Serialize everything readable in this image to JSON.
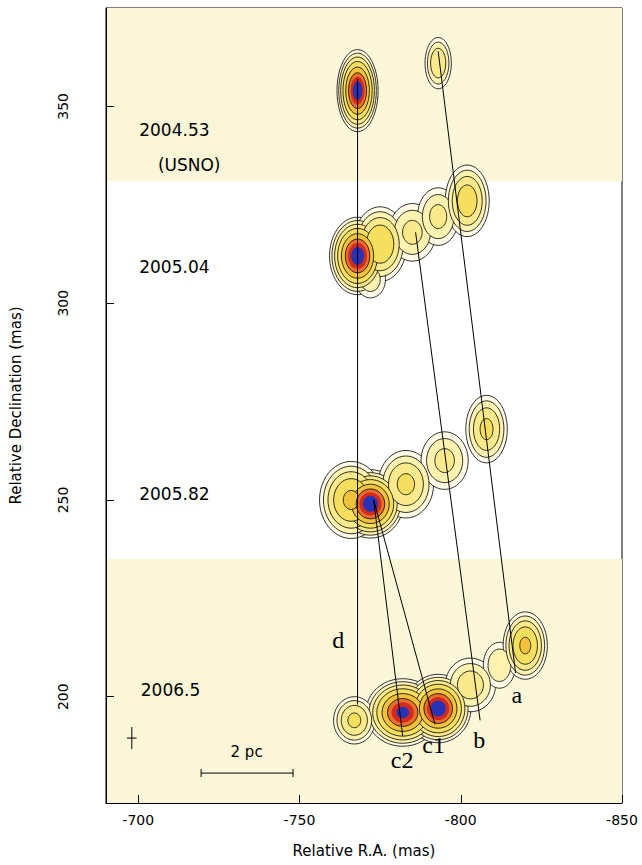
{
  "chart_data": {
    "type": "contour_map",
    "x_label": "Relative R.A. (mas)",
    "y_label": "Relative Declination (mas)",
    "xlim": [
      -690,
      -850
    ],
    "xticks": [
      -700,
      -750,
      -800,
      -850
    ],
    "ylim": [
      173,
      375
    ],
    "yticks": [
      200,
      250,
      300,
      350
    ],
    "bands": [
      {
        "ylim": [
          331,
          375
        ],
        "color": "#fbf6d8"
      },
      {
        "ylim": [
          173,
          235
        ],
        "color": "#fbf6d8"
      }
    ],
    "components": [
      {
        "x": -768,
        "y": 354,
        "sx": 2.2,
        "sy": 3.6,
        "peak": 1.0
      },
      {
        "x": -793,
        "y": 361,
        "sx": 2.0,
        "sy": 3.2,
        "peak": 0.12
      },
      {
        "x": -768,
        "y": 312,
        "sx": 3.0,
        "sy": 3.4,
        "peak": 1.0
      },
      {
        "x": -775,
        "y": 315,
        "sx": 3.5,
        "sy": 4.0,
        "peak": 0.25
      },
      {
        "x": -785,
        "y": 318,
        "sx": 4.0,
        "sy": 4.0,
        "peak": 0.08
      },
      {
        "x": -793,
        "y": 322,
        "sx": 3.5,
        "sy": 4.0,
        "peak": 0.08
      },
      {
        "x": -802,
        "y": 326,
        "sx": 3.0,
        "sy": 4.0,
        "peak": 0.2
      },
      {
        "x": -772,
        "y": 306,
        "sx": 3.0,
        "sy": 3.0,
        "peak": 0.05
      },
      {
        "x": -772,
        "y": 249,
        "sx": 3.5,
        "sy": 3.0,
        "peak": 1.0
      },
      {
        "x": -766,
        "y": 250,
        "sx": 4.0,
        "sy": 4.0,
        "peak": 0.3
      },
      {
        "x": -783,
        "y": 254,
        "sx": 4.0,
        "sy": 4.0,
        "peak": 0.15
      },
      {
        "x": -795,
        "y": 260,
        "sx": 4.0,
        "sy": 4.0,
        "peak": 0.08
      },
      {
        "x": -808,
        "y": 268,
        "sx": 3.0,
        "sy": 4.0,
        "peak": 0.15
      },
      {
        "x": -782,
        "y": 196,
        "sx": 4.0,
        "sy": 3.0,
        "peak": 0.9
      },
      {
        "x": -793,
        "y": 197,
        "sx": 3.5,
        "sy": 3.0,
        "peak": 1.0
      },
      {
        "x": -767,
        "y": 194,
        "sx": 3.0,
        "sy": 2.8,
        "peak": 0.15
      },
      {
        "x": -803,
        "y": 203,
        "sx": 4.0,
        "sy": 3.5,
        "peak": 0.1
      },
      {
        "x": -812,
        "y": 208,
        "sx": 3.0,
        "sy": 3.5,
        "peak": 0.06
      },
      {
        "x": -820,
        "y": 213,
        "sx": 2.8,
        "sy": 3.5,
        "peak": 0.3
      }
    ],
    "tracks": [
      {
        "label": "d",
        "points": [
          [
            -768,
            357
          ],
          [
            -768,
            198
          ]
        ],
        "label_x": -762,
        "label_y": 214.4
      },
      {
        "label": "c2",
        "points": [
          [
            -773,
            250
          ],
          [
            -782,
            190
          ]
        ],
        "label_x": -781.8,
        "label_y": 183.9
      },
      {
        "label": "c1",
        "points": [
          [
            -773,
            250
          ],
          [
            -792,
            193
          ]
        ],
        "label_x": -791.6,
        "label_y": 187.7
      },
      {
        "label": "b",
        "points": [
          [
            -786,
            318
          ],
          [
            -806,
            194
          ]
        ],
        "label_x": -805.7,
        "label_y": 189
      },
      {
        "label": "a",
        "points": [
          [
            -793,
            364
          ],
          [
            -817,
            206
          ]
        ],
        "label_x": -817.4,
        "label_y": 200.5
      }
    ],
    "epoch_labels": [
      {
        "text": "2004.53",
        "x": -711.2,
        "y": 344.0
      },
      {
        "text": "(USNO)",
        "x": -715.8,
        "y": 335.1
      },
      {
        "text": "2005.04",
        "x": -711.2,
        "y": 309.2
      },
      {
        "text": "2005.82",
        "x": -711.2,
        "y": 251.5
      },
      {
        "text": "2006.5",
        "x": -710.0,
        "y": 201.7
      }
    ],
    "scale_bar": {
      "label": "2 pc",
      "x1": -719.5,
      "x2": -748.0,
      "y": 180.6,
      "label_x": -733.6,
      "label_y": 186.0
    },
    "error_cross": {
      "x": -698,
      "y": 189.5,
      "dx": 1.5,
      "dy": 2.8
    }
  }
}
